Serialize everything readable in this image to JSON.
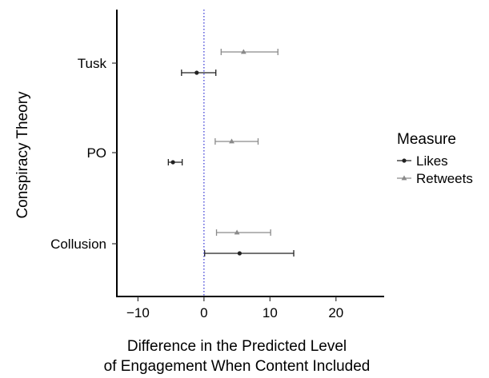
{
  "chart_data": {
    "type": "errorbar-dot",
    "title": "",
    "xlabel": "Difference in the Predicted Level",
    "xlabel_line2": "of Engagement When Content Included",
    "ylabel": "Conspiracy Theory",
    "categories": [
      "Tusk",
      "PO",
      "Collusion"
    ],
    "xlim": [
      -13.2,
      27.3
    ],
    "xticks": [
      -10,
      0,
      10,
      20
    ],
    "xtick_labels": [
      "−10",
      "0",
      "10",
      "20"
    ],
    "reference_line": {
      "x": 0,
      "style": "dotted",
      "color": "#3b3bd6"
    },
    "grid": false,
    "legend": {
      "title": "Measure",
      "position": "right"
    },
    "series": [
      {
        "name": "Likes",
        "marker": "circle",
        "color": "#222222",
        "points": [
          {
            "category": "Tusk",
            "estimate": -1.1,
            "lower": -3.4,
            "upper": 1.8
          },
          {
            "category": "PO",
            "estimate": -4.7,
            "lower": -5.4,
            "upper": -3.3
          },
          {
            "category": "Collusion",
            "estimate": 5.4,
            "lower": 0.1,
            "upper": 13.6
          }
        ]
      },
      {
        "name": "Retweets",
        "marker": "triangle",
        "color": "#8a8a8a",
        "points": [
          {
            "category": "Tusk",
            "estimate": 6.0,
            "lower": 2.6,
            "upper": 11.2
          },
          {
            "category": "PO",
            "estimate": 4.2,
            "lower": 1.7,
            "upper": 8.2
          },
          {
            "category": "Collusion",
            "estimate": 5.0,
            "lower": 1.9,
            "upper": 10.1
          }
        ]
      }
    ]
  }
}
